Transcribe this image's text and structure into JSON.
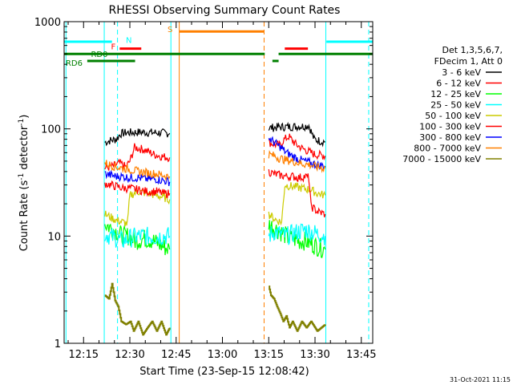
{
  "chart_data": {
    "type": "line",
    "title": "RHESSI Observing Summary Count Rates",
    "xlabel": "Start Time (23-Sep-15 12:08:42)",
    "ylabel_main": "Count Rate (s",
    "ylabel_sup1": "-1",
    "ylabel_mid": " detector",
    "ylabel_sup2": "-1",
    "ylabel_end": ")",
    "y_scale": "log",
    "ylim": [
      1,
      1000
    ],
    "xlim_minutes": [
      0,
      100
    ],
    "x_ticks": [
      {
        "t": 6.3,
        "label": "12:15"
      },
      {
        "t": 21.3,
        "label": "12:30"
      },
      {
        "t": 36.3,
        "label": "12:45"
      },
      {
        "t": 51.3,
        "label": "13:00"
      },
      {
        "t": 66.3,
        "label": "13:15"
      },
      {
        "t": 81.3,
        "label": "13:30"
      },
      {
        "t": 96.3,
        "label": "13:45"
      }
    ],
    "y_ticks": [
      {
        "v": 1,
        "label": "1"
      },
      {
        "v": 10,
        "label": "10"
      },
      {
        "v": 100,
        "label": "100"
      },
      {
        "v": 1000,
        "label": "1000"
      }
    ],
    "legend_header": [
      "Det 1,3,5,6,7,",
      "FDecim 1, Att 0"
    ],
    "series": [
      {
        "name": "3 - 6 keV",
        "color": "#000000",
        "segments": [
          [
            [
              13.2,
              75
            ],
            [
              15,
              78
            ],
            [
              17,
              80
            ],
            [
              18.2,
              90
            ],
            [
              20,
              92
            ],
            [
              25,
              93
            ],
            [
              30,
              92
            ],
            [
              34.2,
              91
            ]
          ],
          [
            [
              66.3,
              102
            ],
            [
              70,
              104
            ],
            [
              74,
              105
            ],
            [
              78,
              106
            ],
            [
              79.3,
              108
            ],
            [
              81,
              80
            ],
            [
              83,
              77
            ],
            [
              84.6,
              76
            ]
          ]
        ]
      },
      {
        "name": "6 - 12 keV",
        "color": "#ff0000",
        "segments": [
          [
            [
              13.2,
              43
            ],
            [
              16,
              45
            ],
            [
              18,
              48
            ],
            [
              20,
              44
            ],
            [
              21.3,
              50
            ],
            [
              22.8,
              67
            ],
            [
              26,
              64
            ],
            [
              29,
              58
            ],
            [
              32,
              55
            ],
            [
              34.2,
              54
            ]
          ],
          [
            [
              66.3,
              75
            ],
            [
              68,
              72
            ],
            [
              70,
              70
            ],
            [
              71,
              78
            ],
            [
              72.8,
              85
            ],
            [
              75,
              72
            ],
            [
              77,
              66
            ],
            [
              79,
              62
            ],
            [
              81,
              58
            ],
            [
              84.6,
              56
            ]
          ]
        ]
      },
      {
        "name": "12 - 25 keV",
        "color": "#00ff00",
        "segments": [
          [
            [
              13.2,
              13
            ],
            [
              15,
              12
            ],
            [
              17,
              11
            ],
            [
              19,
              10
            ],
            [
              21,
              10
            ],
            [
              23,
              9
            ],
            [
              26,
              9.5
            ],
            [
              29,
              9
            ],
            [
              32,
              8
            ],
            [
              34.2,
              7.5
            ]
          ],
          [
            [
              66.3,
              13
            ],
            [
              68,
              12
            ],
            [
              70,
              11
            ],
            [
              72,
              10
            ],
            [
              74,
              9.5
            ],
            [
              76,
              9
            ],
            [
              78,
              9
            ],
            [
              80,
              8.5
            ],
            [
              82,
              8
            ],
            [
              84.6,
              7.5
            ]
          ]
        ]
      },
      {
        "name": "25 - 50 keV",
        "color": "#00ffff",
        "segments": [
          [
            [
              13.2,
              10.5
            ],
            [
              15,
              10
            ],
            [
              17,
              9.5
            ],
            [
              19,
              9
            ],
            [
              21,
              9.5
            ],
            [
              24,
              10
            ],
            [
              26,
              10
            ],
            [
              29,
              9.8
            ],
            [
              32,
              10
            ],
            [
              34.2,
              10
            ]
          ],
          [
            [
              66.3,
              10
            ],
            [
              68,
              11
            ],
            [
              70,
              10.5
            ],
            [
              72,
              10
            ],
            [
              74,
              10.5
            ],
            [
              76,
              11
            ],
            [
              78,
              11.5
            ],
            [
              80,
              11
            ],
            [
              82,
              10.5
            ],
            [
              84.6,
              10
            ]
          ]
        ]
      },
      {
        "name": "50 - 100 keV",
        "color": "#cccc00",
        "segments": [
          [
            [
              13.2,
              16
            ],
            [
              15,
              15
            ],
            [
              17,
              14
            ],
            [
              19,
              13.5
            ],
            [
              20.5,
              13
            ],
            [
              21.3,
              24
            ],
            [
              24,
              26
            ],
            [
              27,
              25
            ],
            [
              30,
              24
            ],
            [
              32,
              23
            ],
            [
              34.2,
              22
            ]
          ],
          [
            [
              66.3,
              16
            ],
            [
              67.5,
              15
            ],
            [
              69,
              14
            ],
            [
              70.5,
              13.5
            ],
            [
              71.5,
              30
            ],
            [
              74,
              29
            ],
            [
              77,
              28
            ],
            [
              80,
              27
            ],
            [
              82,
              25
            ],
            [
              84.6,
              24
            ]
          ]
        ]
      },
      {
        "name": "100 - 300 keV",
        "color": "#ff0000",
        "segments": [
          [
            [
              13.2,
              31
            ],
            [
              15,
              30
            ],
            [
              17,
              29
            ],
            [
              19,
              28
            ],
            [
              21,
              28
            ],
            [
              24,
              27
            ],
            [
              27,
              26
            ],
            [
              30,
              26
            ],
            [
              32,
              25
            ],
            [
              34.2,
              25
            ]
          ],
          [
            [
              66.3,
              40
            ],
            [
              68,
              38
            ],
            [
              70,
              37
            ],
            [
              72,
              36
            ],
            [
              74,
              36
            ],
            [
              76,
              35
            ],
            [
              78,
              36
            ],
            [
              79.3,
              35
            ],
            [
              80,
              19
            ],
            [
              82,
              17
            ],
            [
              84.6,
              16
            ]
          ]
        ]
      },
      {
        "name": "300 - 800 keV",
        "color": "#0000ff",
        "segments": [
          [
            [
              13.2,
              38
            ],
            [
              15,
              37
            ],
            [
              17,
              36
            ],
            [
              19,
              36
            ],
            [
              21,
              35
            ],
            [
              24,
              35
            ],
            [
              27,
              34
            ],
            [
              30,
              34
            ],
            [
              32,
              33
            ],
            [
              34.2,
              32
            ]
          ],
          [
            [
              66.3,
              82
            ],
            [
              68,
              75
            ],
            [
              70,
              68
            ],
            [
              72,
              60
            ],
            [
              74,
              56
            ],
            [
              76,
              52
            ],
            [
              78,
              50
            ],
            [
              80,
              48
            ],
            [
              82,
              46
            ],
            [
              84.6,
              45
            ]
          ]
        ]
      },
      {
        "name": "800 - 7000 keV",
        "color": "#ff8000",
        "segments": [
          [
            [
              13.2,
              48
            ],
            [
              15,
              46
            ],
            [
              17,
              44
            ],
            [
              19,
              43
            ],
            [
              21,
              42
            ],
            [
              24,
              40
            ],
            [
              27,
              39
            ],
            [
              30,
              38
            ],
            [
              32,
              37
            ],
            [
              34.2,
              36
            ]
          ],
          [
            [
              66.3,
              58
            ],
            [
              68,
              56
            ],
            [
              70,
              53
            ],
            [
              72,
              51
            ],
            [
              74,
              50
            ],
            [
              76,
              48
            ],
            [
              78,
              47
            ],
            [
              80,
              46
            ],
            [
              82,
              44
            ],
            [
              84.6,
              43
            ]
          ]
        ]
      },
      {
        "name": "7000 - 15000 keV",
        "color": "#808000",
        "segments": [
          [
            [
              13.2,
              2.8
            ],
            [
              14.5,
              2.6
            ],
            [
              15.5,
              3.6
            ],
            [
              16.5,
              2.5
            ],
            [
              17.5,
              2.2
            ],
            [
              18.5,
              1.6
            ],
            [
              20,
              1.5
            ],
            [
              21.5,
              1.6
            ],
            [
              22.5,
              1.3
            ],
            [
              24,
              1.6
            ],
            [
              25.5,
              1.2
            ],
            [
              27,
              1.4
            ],
            [
              28.5,
              1.6
            ],
            [
              30,
              1.3
            ],
            [
              31.5,
              1.6
            ],
            [
              33,
              1.2
            ],
            [
              34.2,
              1.4
            ]
          ],
          [
            [
              66.3,
              3.4
            ],
            [
              67,
              2.8
            ],
            [
              68,
              2.6
            ],
            [
              69,
              2.2
            ],
            [
              70,
              1.9
            ],
            [
              71,
              1.6
            ],
            [
              72,
              1.8
            ],
            [
              73,
              1.4
            ],
            [
              74,
              1.6
            ],
            [
              75.5,
              1.3
            ],
            [
              77,
              1.6
            ],
            [
              78.5,
              1.4
            ],
            [
              80,
              1.6
            ],
            [
              82,
              1.3
            ],
            [
              84.6,
              1.5
            ]
          ]
        ]
      }
    ],
    "state_bars": [
      {
        "label": "N",
        "color": "#00ffff",
        "y": 650,
        "label_t": 20.0,
        "label_y": 680,
        "ranges": [
          [
            0,
            15.5
          ],
          [
            85,
            101
          ]
        ]
      },
      {
        "label": "F",
        "color": "#ff0000",
        "y": 560,
        "label_t": 15.2,
        "label_y": 590,
        "ranges": [
          [
            18,
            25
          ]
        ],
        "extra_ranges": [
          [
            71.5,
            79
          ]
        ]
      },
      {
        "label": "S",
        "color": "#ff8000",
        "y": 810,
        "label_t": 33.5,
        "label_y": 860,
        "ranges": [
          [
            37.3,
            64.8
          ]
        ]
      },
      {
        "label": "RD0",
        "color": "#008000",
        "y": 500,
        "label_t": 8.7,
        "label_y": 500,
        "ranges": [
          [
            0,
            65
          ],
          [
            69.5,
            101
          ]
        ]
      },
      {
        "label": "RD6",
        "color": "#008000",
        "y": 430,
        "label_t": 0.5,
        "label_y": 415,
        "ranges": [
          [
            7.5,
            23
          ],
          [
            67.5,
            69.5
          ]
        ]
      }
    ],
    "vlines": [
      {
        "t": 0.6,
        "color": "#00ffff",
        "style": "solid"
      },
      {
        "t": 13.0,
        "color": "#00ffff",
        "style": "solid"
      },
      {
        "t": 17.3,
        "color": "#00ffff",
        "style": "dashed"
      },
      {
        "t": 34.6,
        "color": "#00ffff",
        "style": "solid"
      },
      {
        "t": 37.3,
        "color": "#ff8000",
        "style": "solid"
      },
      {
        "t": 64.8,
        "color": "#ff8000",
        "style": "dashed"
      },
      {
        "t": 84.8,
        "color": "#00ffff",
        "style": "solid"
      },
      {
        "t": 98.7,
        "color": "#00ffff",
        "style": "dashed"
      }
    ],
    "footer_date": "31-Oct-2021 11:15"
  }
}
